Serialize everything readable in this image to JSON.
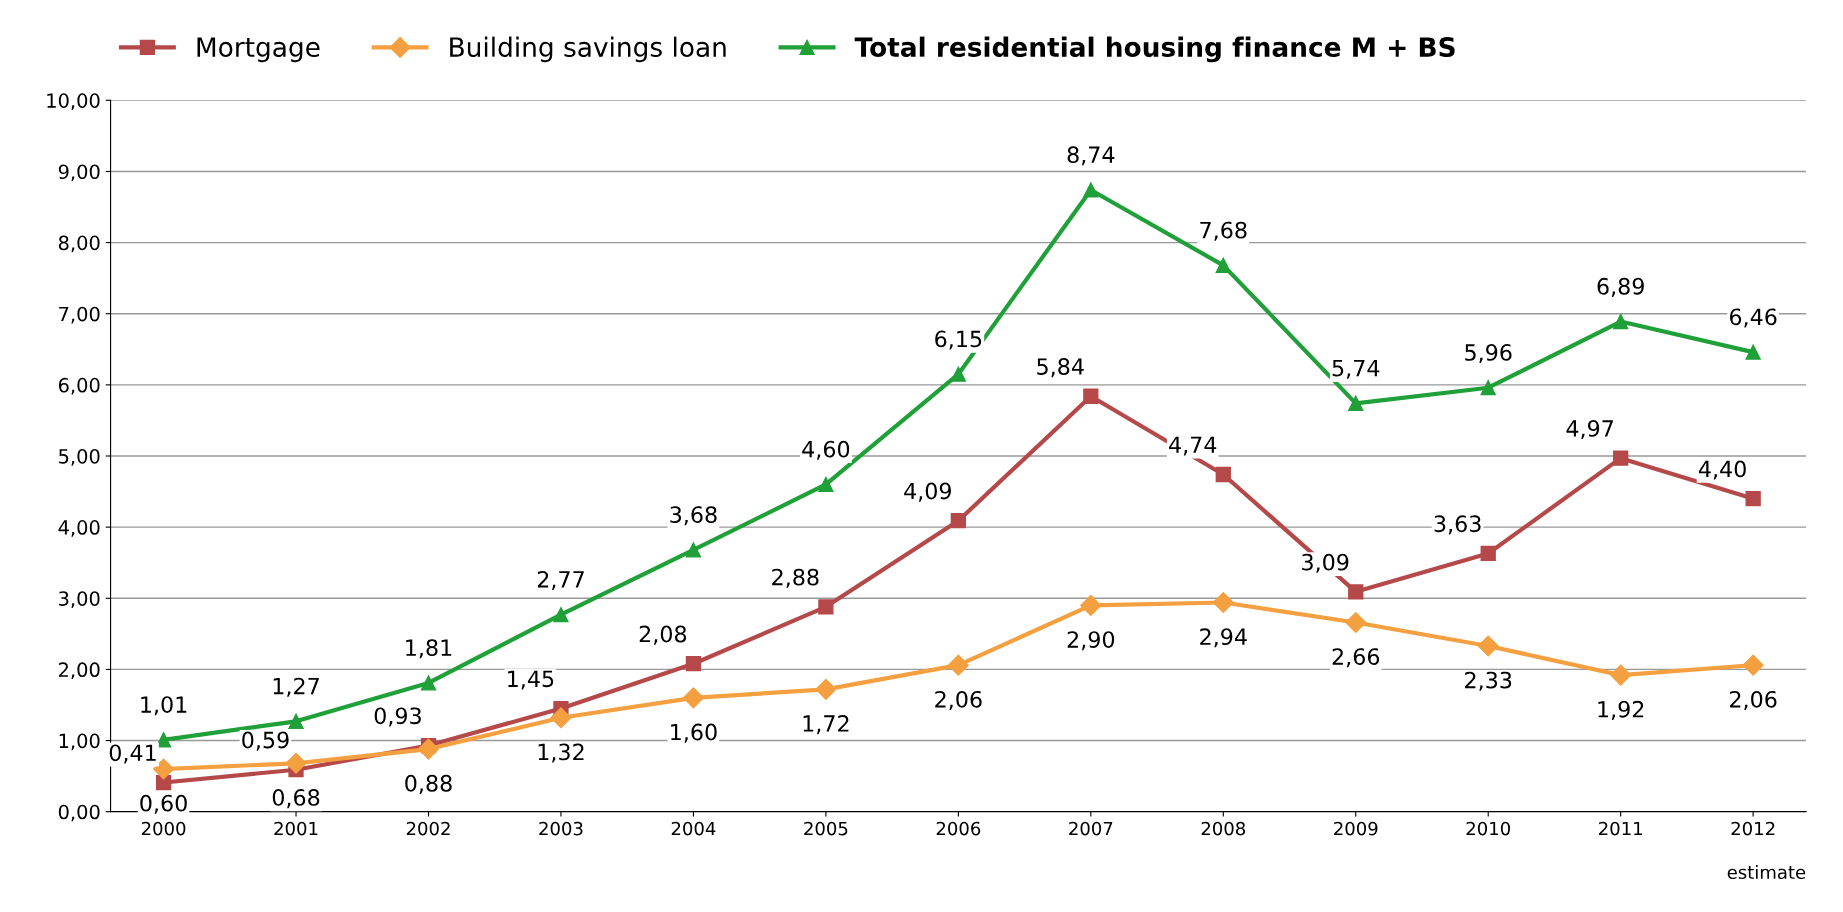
{
  "chart_data": {
    "type": "line",
    "categories": [
      "2000",
      "2001",
      "2002",
      "2003",
      "2004",
      "2005",
      "2006",
      "2007",
      "2008",
      "2009",
      "2010",
      "2011",
      "2012"
    ],
    "series": [
      {
        "name": "Mortgage",
        "color": "#b5494a",
        "marker": "square",
        "values": [
          0.41,
          0.59,
          0.93,
          1.45,
          2.08,
          2.88,
          4.09,
          5.84,
          4.74,
          3.09,
          3.63,
          4.97,
          4.4
        ],
        "value_labels": [
          "0,41",
          "0,59",
          "0,93",
          "1,45",
          "2,08",
          "2,88",
          "4,09",
          "5,84",
          "4,74",
          "3,09",
          "3,63",
          "4,97",
          "4,40"
        ]
      },
      {
        "name": "Building savings loan",
        "color": "#f5a040",
        "marker": "diamond",
        "values": [
          0.6,
          0.68,
          0.88,
          1.32,
          1.6,
          1.72,
          2.06,
          2.9,
          2.94,
          2.66,
          2.33,
          1.92,
          2.06
        ],
        "value_labels": [
          "0,60",
          "0,68",
          "0,88",
          "1,32",
          "1,60",
          "1,72",
          "2,06",
          "2,90",
          "2,94",
          "2,66",
          "2,33",
          "1,92",
          "2,06"
        ]
      },
      {
        "name": "Total residential housing finance M + BS",
        "color": "#20a038",
        "marker": "triangle",
        "values": [
          1.01,
          1.27,
          1.81,
          2.77,
          3.68,
          4.6,
          6.15,
          8.74,
          7.68,
          5.74,
          5.96,
          6.89,
          6.46
        ],
        "value_labels": [
          "1,01",
          "1,27",
          "1,81",
          "2,77",
          "3,68",
          "4,60",
          "6,15",
          "8,74",
          "7,68",
          "5,74",
          "5,96",
          "6,89",
          "6,46"
        ]
      }
    ],
    "ylim": [
      0,
      10
    ],
    "yticks": [
      {
        "value": 0,
        "label": "0,00"
      },
      {
        "value": 1,
        "label": "1,00"
      },
      {
        "value": 2,
        "label": "2,00"
      },
      {
        "value": 3,
        "label": "3,00"
      },
      {
        "value": 4,
        "label": "4,00"
      },
      {
        "value": 5,
        "label": "5,00"
      },
      {
        "value": 6,
        "label": "6,00"
      },
      {
        "value": 7,
        "label": "7,00"
      },
      {
        "value": 8,
        "label": "8,00"
      },
      {
        "value": 9,
        "label": "9,00"
      },
      {
        "value": 10,
        "label": "10,00"
      }
    ],
    "grid": "y",
    "legend": "top",
    "line_style": "solid",
    "annotations": [
      "estimate"
    ]
  }
}
